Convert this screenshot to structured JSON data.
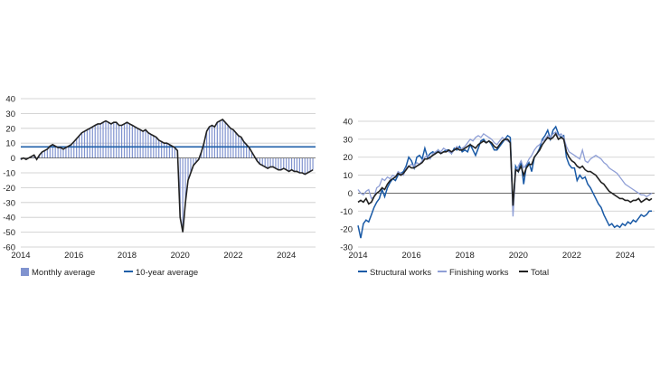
{
  "colors": {
    "bar": "#8093cf",
    "ten_year": "#1f5fa8",
    "black": "#222222",
    "structural": "#1a5aa6",
    "finishing": "#8f9fd6",
    "grid": "#c9c9c9"
  },
  "chart_data": [
    {
      "type": "bar",
      "xlim": [
        2014,
        2025.1
      ],
      "ylim": [
        -60,
        40
      ],
      "x_ticks": [
        "2014",
        "2016",
        "2018",
        "2020",
        "2022",
        "2024"
      ],
      "y_ticks": [
        "40",
        "30",
        "20",
        "10",
        "0",
        "-10",
        "-20",
        "-30",
        "-40",
        "-50",
        "-60"
      ],
      "series": [
        {
          "name": "Monthly average",
          "type": "bar",
          "x": [
            2014.0,
            2014.1,
            2014.2,
            2014.3,
            2014.4,
            2014.5,
            2014.6,
            2014.7,
            2014.8,
            2014.9,
            2015.0,
            2015.1,
            2015.2,
            2015.3,
            2015.4,
            2015.5,
            2015.6,
            2015.7,
            2015.8,
            2015.9,
            2016.0,
            2016.1,
            2016.2,
            2016.3,
            2016.4,
            2016.5,
            2016.6,
            2016.7,
            2016.8,
            2016.9,
            2017.0,
            2017.1,
            2017.2,
            2017.3,
            2017.4,
            2017.5,
            2017.6,
            2017.7,
            2017.8,
            2017.9,
            2018.0,
            2018.1,
            2018.2,
            2018.3,
            2018.4,
            2018.5,
            2018.6,
            2018.7,
            2018.8,
            2018.9,
            2019.0,
            2019.1,
            2019.2,
            2019.3,
            2019.4,
            2019.5,
            2019.6,
            2019.7,
            2019.8,
            2019.9,
            2020.0,
            2020.1,
            2020.2,
            2020.3,
            2020.4,
            2020.5,
            2020.6,
            2020.7,
            2020.8,
            2020.9,
            2021.0,
            2021.1,
            2021.2,
            2021.3,
            2021.4,
            2021.5,
            2021.6,
            2021.7,
            2021.8,
            2021.9,
            2022.0,
            2022.1,
            2022.2,
            2022.3,
            2022.4,
            2022.5,
            2022.6,
            2022.7,
            2022.8,
            2022.9,
            2023.0,
            2023.1,
            2023.2,
            2023.3,
            2023.4,
            2023.5,
            2023.6,
            2023.7,
            2023.8,
            2023.9,
            2024.0,
            2024.1,
            2024.2,
            2024.3,
            2024.4,
            2024.5,
            2024.6,
            2024.7,
            2024.8,
            2024.9,
            2025.0
          ],
          "values": [
            -1,
            0,
            -1,
            0,
            1,
            2,
            -1,
            2,
            4,
            5,
            6,
            8,
            9,
            8,
            7,
            7,
            6,
            7,
            8,
            9,
            11,
            13,
            15,
            17,
            18,
            19,
            20,
            21,
            22,
            23,
            23,
            24,
            25,
            24,
            23,
            24,
            24,
            22,
            22,
            23,
            24,
            23,
            22,
            21,
            20,
            19,
            18,
            19,
            17,
            16,
            15,
            14,
            12,
            11,
            10,
            10,
            9,
            8,
            7,
            5,
            -40,
            -50,
            -30,
            -15,
            -10,
            -5,
            -3,
            -1,
            4,
            10,
            18,
            21,
            22,
            21,
            24,
            25,
            26,
            24,
            22,
            20,
            19,
            17,
            15,
            14,
            11,
            9,
            7,
            4,
            1,
            -2,
            -4,
            -5,
            -6,
            -7,
            -6,
            -6,
            -7,
            -8,
            -8,
            -7,
            -8,
            -9,
            -8,
            -9,
            -9,
            -10,
            -10,
            -11,
            -10,
            -9,
            -8
          ]
        },
        {
          "name": "10-year average",
          "type": "hline",
          "value": 7.5
        }
      ],
      "legend": [
        "Monthly average",
        "10-year average"
      ]
    },
    {
      "type": "line",
      "xlim": [
        2014,
        2025.1
      ],
      "ylim": [
        -30,
        40
      ],
      "x_ticks": [
        "2014",
        "2016",
        "2018",
        "2020",
        "2022",
        "2024"
      ],
      "y_ticks": [
        "40",
        "30",
        "20",
        "10",
        "0",
        "-10",
        "-20",
        "-30"
      ],
      "x": [
        2014.0,
        2014.1,
        2014.2,
        2014.3,
        2014.4,
        2014.5,
        2014.6,
        2014.7,
        2014.8,
        2014.9,
        2015.0,
        2015.1,
        2015.2,
        2015.3,
        2015.4,
        2015.5,
        2015.6,
        2015.7,
        2015.8,
        2015.9,
        2016.0,
        2016.1,
        2016.2,
        2016.3,
        2016.4,
        2016.5,
        2016.6,
        2016.7,
        2016.8,
        2016.9,
        2017.0,
        2017.1,
        2017.2,
        2017.3,
        2017.4,
        2017.5,
        2017.6,
        2017.7,
        2017.8,
        2017.9,
        2018.0,
        2018.1,
        2018.2,
        2018.3,
        2018.4,
        2018.5,
        2018.6,
        2018.7,
        2018.8,
        2018.9,
        2019.0,
        2019.1,
        2019.2,
        2019.3,
        2019.4,
        2019.5,
        2019.6,
        2019.7,
        2019.8,
        2019.9,
        2020.0,
        2020.1,
        2020.2,
        2020.3,
        2020.4,
        2020.5,
        2020.6,
        2020.7,
        2020.8,
        2020.9,
        2021.0,
        2021.1,
        2021.2,
        2021.3,
        2021.4,
        2021.5,
        2021.6,
        2021.7,
        2021.8,
        2021.9,
        2022.0,
        2022.1,
        2022.2,
        2022.3,
        2022.4,
        2022.5,
        2022.6,
        2022.7,
        2022.8,
        2022.9,
        2023.0,
        2023.1,
        2023.2,
        2023.3,
        2023.4,
        2023.5,
        2023.6,
        2023.7,
        2023.8,
        2023.9,
        2024.0,
        2024.1,
        2024.2,
        2024.3,
        2024.4,
        2024.5,
        2024.6,
        2024.7,
        2024.8,
        2024.9,
        2025.0
      ],
      "series": [
        {
          "name": "Structural works",
          "values": [
            -18,
            -25,
            -17,
            -15,
            -16,
            -12,
            -8,
            -5,
            -3,
            2,
            -2,
            3,
            6,
            8,
            7,
            10,
            11,
            12,
            15,
            20,
            18,
            14,
            20,
            21,
            19,
            25,
            20,
            22,
            23,
            22,
            24,
            22,
            23,
            24,
            24,
            22,
            25,
            24,
            26,
            23,
            24,
            23,
            27,
            24,
            21,
            25,
            29,
            30,
            28,
            29,
            27,
            24,
            24,
            26,
            28,
            30,
            32,
            31,
            -10,
            15,
            12,
            18,
            5,
            15,
            17,
            12,
            20,
            22,
            25,
            30,
            32,
            35,
            30,
            35,
            37,
            33,
            31,
            32,
            20,
            16,
            14,
            14,
            7,
            10,
            8,
            9,
            5,
            3,
            0,
            -3,
            -6,
            -8,
            -12,
            -15,
            -18,
            -17,
            -19,
            -18,
            -19,
            -17,
            -18,
            -16,
            -17,
            -15,
            -16,
            -14,
            -12,
            -13,
            -12,
            -10,
            -10
          ]
        },
        {
          "name": "Finishing works",
          "values": [
            2,
            0,
            -1,
            1,
            2,
            -3,
            -2,
            3,
            4,
            8,
            7,
            9,
            8,
            10,
            9,
            12,
            11,
            10,
            14,
            15,
            16,
            15,
            17,
            16,
            18,
            20,
            21,
            19,
            22,
            23,
            24,
            23,
            25,
            24,
            23,
            22,
            24,
            26,
            24,
            25,
            26,
            28,
            30,
            29,
            31,
            32,
            31,
            33,
            32,
            31,
            30,
            28,
            27,
            29,
            31,
            30,
            29,
            28,
            -13,
            12,
            15,
            18,
            14,
            16,
            19,
            21,
            24,
            26,
            27,
            29,
            30,
            32,
            31,
            33,
            34,
            32,
            33,
            31,
            26,
            23,
            22,
            21,
            20,
            19,
            24,
            18,
            17,
            19,
            20,
            21,
            20,
            19,
            17,
            16,
            14,
            13,
            12,
            11,
            9,
            7,
            5,
            4,
            3,
            2,
            1,
            0,
            -1,
            -1,
            -2,
            -1,
            0
          ]
        },
        {
          "name": "Total",
          "values": [
            -5,
            -4,
            -5,
            -3,
            -6,
            -5,
            -2,
            0,
            1,
            3,
            2,
            5,
            7,
            8,
            9,
            11,
            10,
            11,
            13,
            15,
            14,
            14,
            15,
            16,
            17,
            19,
            19,
            20,
            21,
            22,
            23,
            22,
            23,
            23,
            24,
            23,
            24,
            25,
            24,
            24,
            25,
            26,
            27,
            26,
            25,
            27,
            28,
            29,
            28,
            29,
            28,
            26,
            25,
            27,
            29,
            30,
            30,
            28,
            -7,
            13,
            12,
            15,
            10,
            14,
            16,
            16,
            20,
            22,
            24,
            27,
            29,
            31,
            30,
            31,
            33,
            30,
            31,
            30,
            23,
            20,
            18,
            17,
            15,
            14,
            15,
            13,
            12,
            12,
            11,
            10,
            8,
            6,
            5,
            3,
            1,
            0,
            -1,
            -2,
            -3,
            -3,
            -4,
            -4,
            -5,
            -4,
            -4,
            -3,
            -5,
            -4,
            -3,
            -4,
            -3
          ]
        }
      ],
      "legend": [
        "Structural works",
        "Finishing works",
        "Total"
      ]
    }
  ]
}
